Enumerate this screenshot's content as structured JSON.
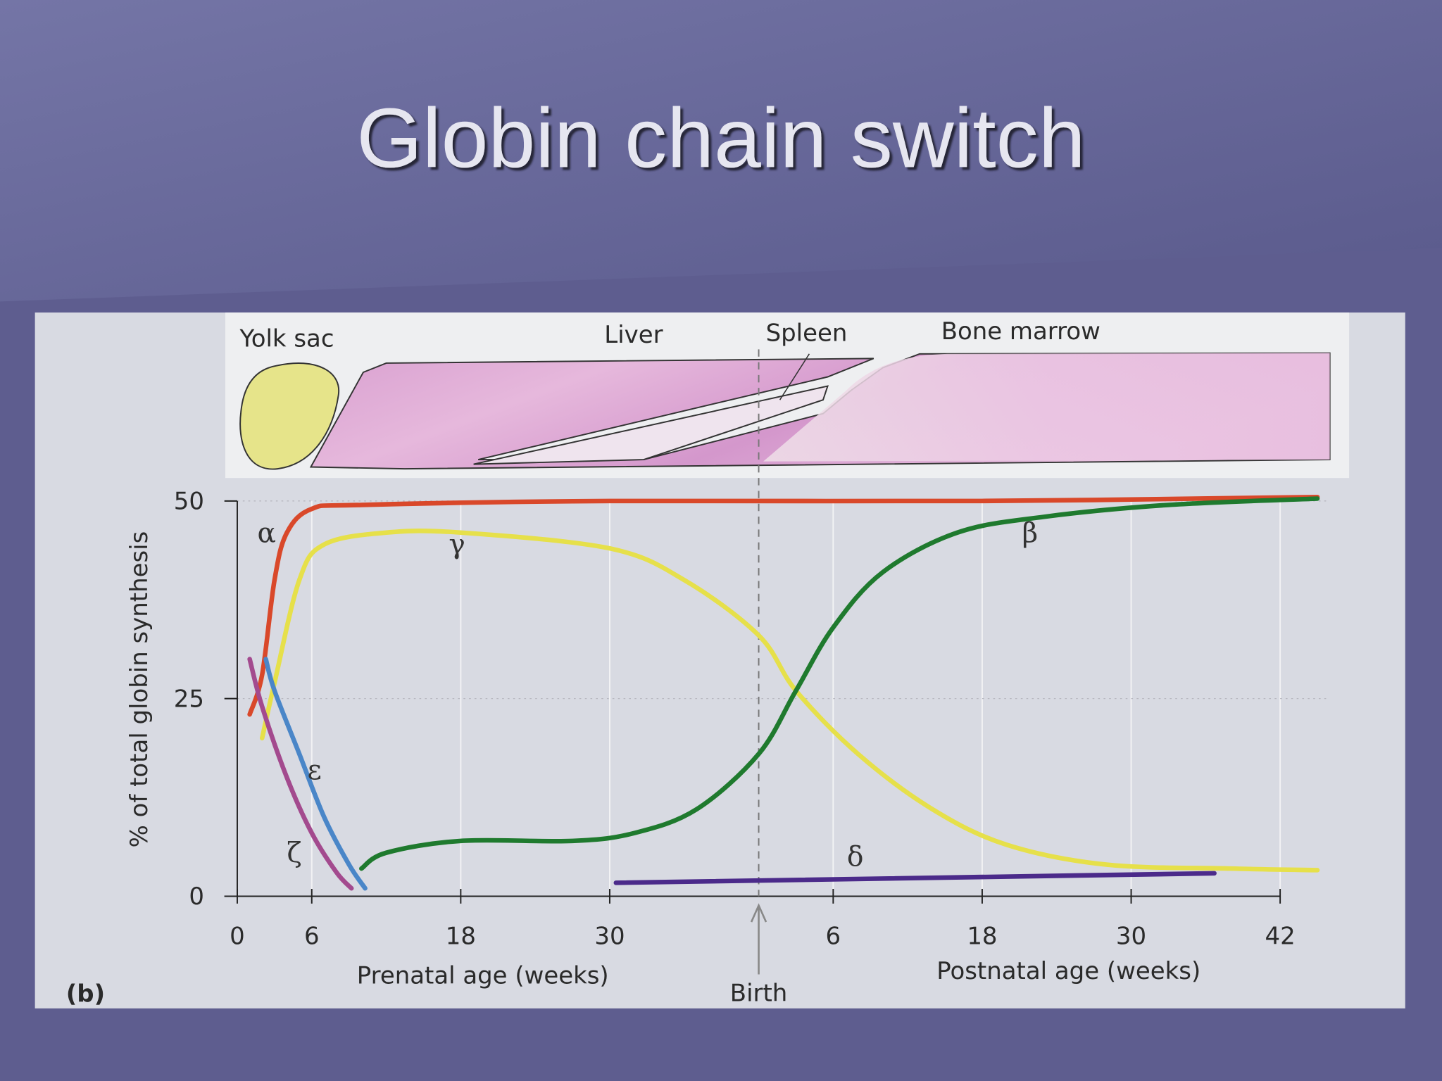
{
  "title": "Globin chain switch",
  "regions": [
    "Yolk sac",
    "Liver",
    "Spleen",
    "Bone marrow"
  ],
  "chart_data": {
    "type": "line",
    "ylabel": "% of total globin synthesis",
    "xlabel_prenatal": "Prenatal age (weeks)",
    "xlabel_postnatal": "Postnatal age (weeks)",
    "panel_label": "(b)",
    "birth": {
      "value": 42,
      "label": "Birth"
    },
    "xlim": [
      0,
      88
    ],
    "ylim": [
      0,
      50
    ],
    "xticks": [
      0,
      6,
      18,
      30,
      {
        "value": 48,
        "label": "6"
      },
      {
        "value": 60,
        "label": "18"
      },
      {
        "value": 72,
        "label": "30"
      },
      {
        "value": 84,
        "label": "42"
      }
    ],
    "yticks": [
      0,
      25,
      50
    ],
    "grid": true,
    "series": [
      {
        "name": "α",
        "color": "#d9482a",
        "x": [
          1,
          2,
          3,
          4,
          6,
          10,
          30,
          60,
          87
        ],
        "values": [
          23,
          28,
          40,
          46,
          49,
          49.5,
          50,
          50,
          50.5
        ]
      },
      {
        "name": "γ",
        "color": "#e6e04a",
        "x": [
          2,
          3,
          5,
          7,
          12,
          18,
          30,
          36,
          42,
          45,
          50,
          56,
          62,
          70,
          80,
          87
        ],
        "values": [
          20,
          27,
          40,
          44.5,
          46,
          46,
          44,
          40,
          33,
          26,
          18,
          11,
          6.5,
          4,
          3.5,
          3.3
        ]
      },
      {
        "name": "β",
        "color": "#1f7a2e",
        "x": [
          10,
          12,
          18,
          27,
          32,
          37,
          42,
          45,
          48,
          52,
          58,
          65,
          75,
          87
        ],
        "values": [
          3.5,
          5.5,
          7,
          7,
          8,
          11,
          18,
          26,
          34,
          41,
          46,
          48,
          49.5,
          50.3
        ]
      },
      {
        "name": "δ",
        "color": "#4b2a8a",
        "x": [
          30.5,
          78.7
        ],
        "values": [
          1.7,
          2.9
        ]
      },
      {
        "name": "ε",
        "color": "#4a86c8",
        "x": [
          2.3,
          3,
          5,
          7,
          9,
          10.3
        ],
        "values": [
          30,
          26,
          18,
          10,
          4,
          1
        ]
      },
      {
        "name": "ζ",
        "color": "#a34a8e",
        "x": [
          1,
          2,
          4,
          6,
          8,
          9.2
        ],
        "values": [
          30,
          24,
          15,
          8,
          3,
          1
        ]
      }
    ]
  }
}
